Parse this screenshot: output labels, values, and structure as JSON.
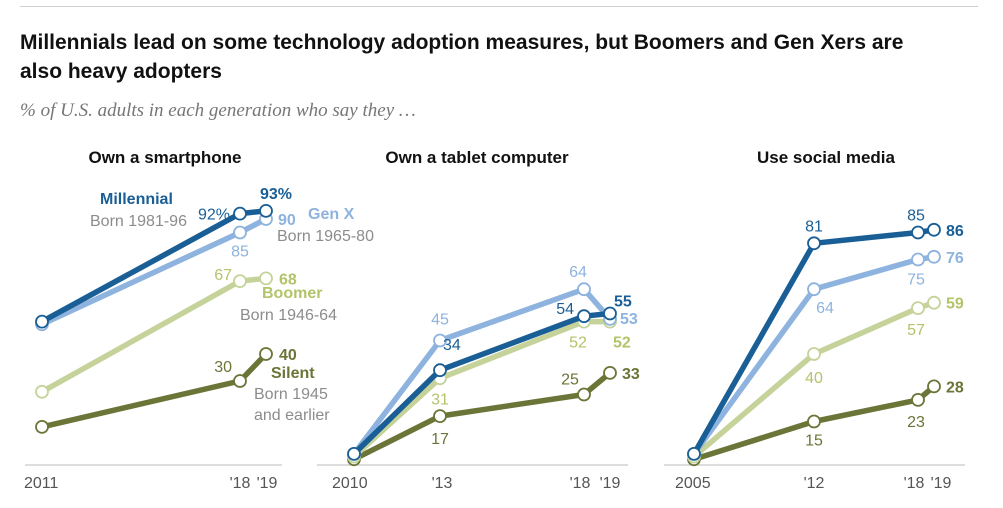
{
  "title": "Millennials lead on some technology adoption measures, but Boomers and Gen Xers are also heavy adopters",
  "subtitle": "% of U.S. adults in each generation who say they …",
  "colors": {
    "millennial": "#1a5e96",
    "genx": "#8db3de",
    "boomer": "#c5d39a",
    "silent": "#6a7537",
    "boomer_label": "#b2c46a",
    "axis": "#bbbbbb"
  },
  "generations": {
    "millennial": {
      "name": "Millennial",
      "born": "Born 1981-96"
    },
    "genx": {
      "name": "Gen X",
      "born": "Born 1965-80"
    },
    "boomer": {
      "name": "Boomer",
      "born": "Born 1946-64"
    },
    "silent": {
      "name": "Silent",
      "born_lines": [
        "Born 1945",
        "and earlier"
      ]
    }
  },
  "chart_data": [
    {
      "type": "line",
      "title": "Own a smartphone",
      "x": [
        2011,
        2018,
        2019
      ],
      "tick_labels": [
        "2011",
        "'18",
        "'19"
      ],
      "ylim": [
        0,
        100
      ],
      "series": [
        {
          "key": "millennial",
          "name": "Millennial",
          "values": [
            52,
            92,
            93
          ],
          "labels": [
            null,
            "92%",
            "93%"
          ]
        },
        {
          "key": "genx",
          "name": "Gen X",
          "values": [
            51,
            85,
            90
          ],
          "labels": [
            null,
            "85",
            "90"
          ]
        },
        {
          "key": "boomer",
          "name": "Boomer",
          "values": [
            26,
            67,
            68
          ],
          "labels": [
            null,
            "67",
            "68"
          ]
        },
        {
          "key": "silent",
          "name": "Silent",
          "values": [
            13,
            30,
            40
          ],
          "labels": [
            null,
            "30",
            "40"
          ]
        }
      ]
    },
    {
      "type": "line",
      "title": "Own a tablet computer",
      "x": [
        2010,
        2013,
        2018,
        2019
      ],
      "tick_labels": [
        "2010",
        "'13",
        "'18",
        "'19"
      ],
      "ylim": [
        0,
        100
      ],
      "series": [
        {
          "key": "millennial",
          "name": "Millennial",
          "values": [
            3,
            34,
            54,
            55
          ],
          "labels": [
            null,
            "34",
            "54",
            "55"
          ]
        },
        {
          "key": "genx",
          "name": "Gen X",
          "values": [
            3,
            45,
            64,
            53
          ],
          "labels": [
            null,
            "45",
            "64",
            "53"
          ]
        },
        {
          "key": "boomer",
          "name": "Boomer",
          "values": [
            2,
            31,
            52,
            52
          ],
          "labels": [
            null,
            "31",
            "52",
            "52"
          ]
        },
        {
          "key": "silent",
          "name": "Silent",
          "values": [
            1,
            17,
            25,
            33
          ],
          "labels": [
            null,
            "17",
            "25",
            "33"
          ]
        }
      ]
    },
    {
      "type": "line",
      "title": "Use social media",
      "x": [
        2005,
        2012,
        2018,
        2019
      ],
      "tick_labels": [
        "2005",
        "'12",
        "'18",
        "'19"
      ],
      "ylim": [
        0,
        100
      ],
      "series": [
        {
          "key": "millennial",
          "name": "Millennial",
          "values": [
            3,
            81,
            85,
            86
          ],
          "labels": [
            null,
            "81",
            "85",
            "86"
          ]
        },
        {
          "key": "genx",
          "name": "Gen X",
          "values": [
            3,
            64,
            75,
            76
          ],
          "labels": [
            null,
            "64",
            "75",
            "76"
          ]
        },
        {
          "key": "boomer",
          "name": "Boomer",
          "values": [
            2,
            40,
            57,
            59
          ],
          "labels": [
            null,
            "40",
            "57",
            "59"
          ]
        },
        {
          "key": "silent",
          "name": "Silent",
          "values": [
            1,
            15,
            23,
            28
          ],
          "labels": [
            null,
            "15",
            "23",
            "28"
          ]
        }
      ]
    }
  ]
}
